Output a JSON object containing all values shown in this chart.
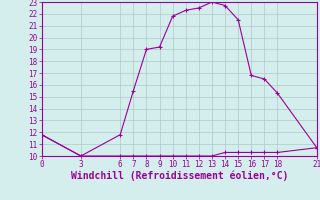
{
  "xlabel": "Windchill (Refroidissement éolien,°C)",
  "x_upper": [
    0,
    3,
    6,
    7,
    8,
    9,
    10,
    11,
    12,
    13,
    14,
    15,
    16,
    17,
    18,
    21
  ],
  "y_upper": [
    11.8,
    10.0,
    11.8,
    15.5,
    19.0,
    19.2,
    21.8,
    22.3,
    22.5,
    23.0,
    22.7,
    21.5,
    16.8,
    16.5,
    15.3,
    10.7
  ],
  "x_lower": [
    0,
    3,
    6,
    7,
    8,
    9,
    10,
    11,
    12,
    13,
    14,
    15,
    16,
    17,
    18,
    21
  ],
  "y_lower": [
    11.8,
    10.0,
    10.0,
    10.0,
    10.0,
    10.0,
    10.0,
    10.0,
    10.0,
    10.0,
    10.3,
    10.3,
    10.3,
    10.3,
    10.3,
    10.7
  ],
  "line_color": "#990099",
  "bg_color": "#d4eeed",
  "grid_color": "#b0c8c8",
  "xlim": [
    0,
    21
  ],
  "ylim": [
    10,
    23
  ],
  "xticks": [
    0,
    3,
    6,
    7,
    8,
    9,
    10,
    11,
    12,
    13,
    14,
    15,
    16,
    17,
    18,
    21
  ],
  "yticks": [
    10,
    11,
    12,
    13,
    14,
    15,
    16,
    17,
    18,
    19,
    20,
    21,
    22,
    23
  ],
  "tick_fontsize": 5.5,
  "xlabel_fontsize": 7.0
}
